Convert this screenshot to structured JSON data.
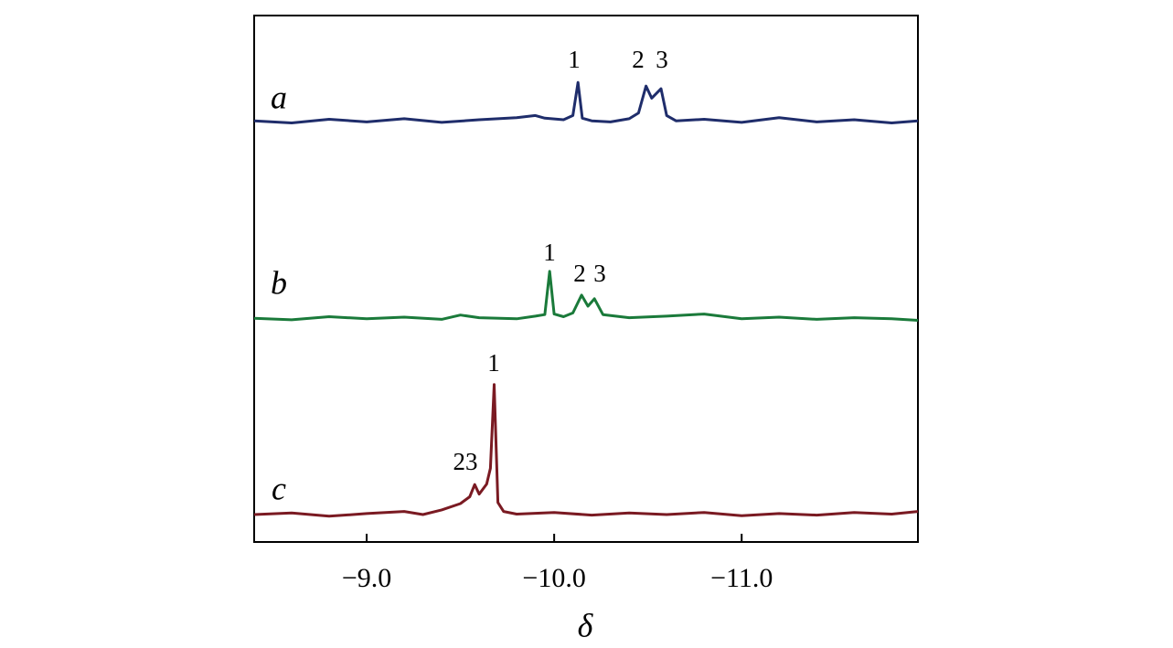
{
  "chart_data": {
    "type": "line",
    "xlabel": "δ",
    "xlim": [
      -8.4,
      -11.94
    ],
    "xticks": [
      {
        "value": -9,
        "label": "−9.0"
      },
      {
        "value": -10,
        "label": "−10.0"
      },
      {
        "value": -11,
        "label": "−11.0"
      }
    ],
    "ylim": [
      0,
      100
    ],
    "series": [
      {
        "name": "a",
        "color": "#1f2d6b",
        "x": [
          -8.4,
          -8.6,
          -8.8,
          -9.0,
          -9.2,
          -9.4,
          -9.6,
          -9.8,
          -9.9,
          -9.95,
          -10.05,
          -10.1,
          -10.127,
          -10.15,
          -10.2,
          -10.3,
          -10.4,
          -10.45,
          -10.49,
          -10.52,
          -10.57,
          -10.6,
          -10.65,
          -10.8,
          -11.0,
          -11.2,
          -11.4,
          -11.6,
          -11.8,
          -11.94
        ],
        "values": [
          80,
          79.6,
          80.3,
          79.8,
          80.4,
          79.7,
          80.2,
          80.6,
          81,
          80.5,
          80.2,
          81,
          87.3,
          80.5,
          80,
          79.8,
          80.4,
          81.5,
          86.6,
          84.3,
          86.1,
          81,
          80,
          80.3,
          79.7,
          80.6,
          79.8,
          80.2,
          79.6,
          80
        ],
        "peak_labels": [
          "1",
          "2",
          "3"
        ]
      },
      {
        "name": "b",
        "color": "#1a7a3a",
        "x": [
          -8.4,
          -8.6,
          -8.8,
          -9.0,
          -9.2,
          -9.4,
          -9.5,
          -9.6,
          -9.8,
          -9.9,
          -9.95,
          -9.976,
          -10.0,
          -10.05,
          -10.1,
          -10.146,
          -10.18,
          -10.215,
          -10.26,
          -10.4,
          -10.6,
          -10.8,
          -11.0,
          -11.2,
          -11.4,
          -11.6,
          -11.8,
          -11.94
        ],
        "values": [
          42.5,
          42.2,
          42.8,
          42.4,
          42.7,
          42.3,
          43.1,
          42.6,
          42.4,
          42.9,
          43.2,
          51.4,
          43.3,
          42.8,
          43.5,
          46.9,
          44.8,
          46.2,
          43.2,
          42.6,
          42.9,
          43.3,
          42.4,
          42.7,
          42.3,
          42.6,
          42.4,
          42.1
        ],
        "peak_labels": [
          "1",
          "2",
          "3"
        ]
      },
      {
        "name": "c",
        "color": "#7a1a22",
        "x": [
          -8.4,
          -8.6,
          -8.8,
          -9.0,
          -9.2,
          -9.3,
          -9.4,
          -9.5,
          -9.55,
          -9.576,
          -9.6,
          -9.64,
          -9.66,
          -9.68,
          -9.7,
          -9.73,
          -9.8,
          -10.0,
          -10.2,
          -10.4,
          -10.6,
          -10.8,
          -11.0,
          -11.2,
          -11.4,
          -11.6,
          -11.8,
          -11.94
        ],
        "values": [
          5.2,
          5.5,
          4.9,
          5.4,
          5.8,
          5.2,
          6.1,
          7.3,
          8.6,
          10.9,
          9.1,
          11,
          14,
          29.9,
          7.5,
          5.8,
          5.3,
          5.6,
          5.1,
          5.5,
          5.2,
          5.6,
          5.0,
          5.4,
          5.1,
          5.6,
          5.3,
          5.8
        ],
        "peak_labels": [
          "1",
          "23"
        ]
      }
    ]
  }
}
